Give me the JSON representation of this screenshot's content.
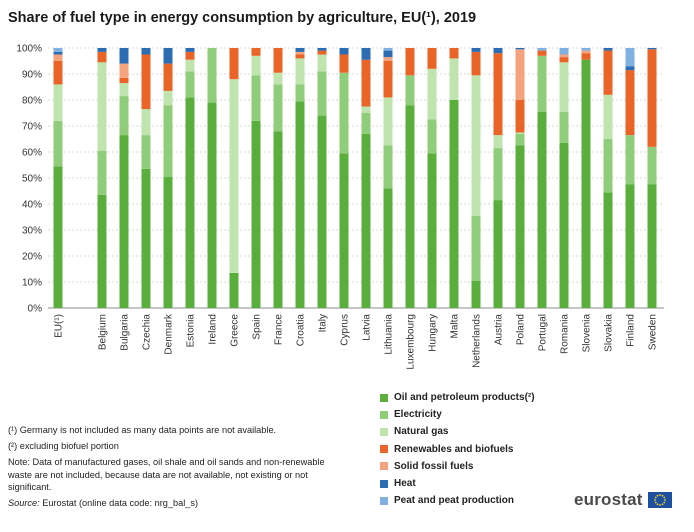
{
  "title": "Share of fuel type in energy consumption by agriculture, EU(¹), 2019",
  "notes": {
    "note1": "(¹) Germany is not included as many data points are not available.",
    "note2": "(²) excluding biofuel portion",
    "note3": "Note: Data of manufactured gases, oil shale and oil sands and non-renewable waste are not included, because data are not available, not existing or not significant.",
    "source_label": "Source:",
    "source_text": " Eurostat (online data code: nrg_bal_s)"
  },
  "logo": {
    "text": "eurostat"
  },
  "colors": {
    "oil": "#5aaf3c",
    "electricity": "#8fcd7a",
    "gas": "#bfe4ae",
    "renewables": "#ea6428",
    "solid": "#f5a27f",
    "heat": "#2b6cb3",
    "peat": "#7fb0e0"
  },
  "chart_data": {
    "type": "bar",
    "stacked": true,
    "title": "Share of fuel type in energy consumption by agriculture, EU(¹), 2019",
    "xlabel": "",
    "ylabel": "",
    "ylim": [
      0,
      100
    ],
    "y_ticks": [
      "0%",
      "10%",
      "20%",
      "30%",
      "40%",
      "50%",
      "60%",
      "70%",
      "80%",
      "90%",
      "100%"
    ],
    "grid": true,
    "legend_position": "bottom-right",
    "categories": [
      "EU(¹)",
      "Belgium",
      "Bulgaria",
      "Czechia",
      "Denmark",
      "Estonia",
      "Ireland",
      "Greece",
      "Spain",
      "France",
      "Croatia",
      "Italy",
      "Cyprus",
      "Latvia",
      "Lithuania",
      "Luxembourg",
      "Hungary",
      "Malta",
      "Netherlands",
      "Austria",
      "Poland",
      "Portugal",
      "Romania",
      "Slovenia",
      "Slovakia",
      "Finland",
      "Sweden"
    ],
    "series": [
      {
        "name": "Oil and petroleum products(²)",
        "color": "#5aaf3c",
        "values": [
          54.5,
          43.5,
          66.5,
          53.5,
          50.5,
          81,
          79,
          13.5,
          72,
          68,
          79.5,
          74,
          59.5,
          67,
          46,
          78,
          59.5,
          80,
          10.5,
          41.5,
          62.5,
          75.5,
          63.5,
          95.5,
          44.5,
          47.5,
          47.5
        ]
      },
      {
        "name": "Electricity",
        "color": "#8fcd7a",
        "values": [
          17.5,
          17,
          15,
          13,
          27.5,
          10,
          21,
          0,
          17.5,
          18,
          6.5,
          17,
          31,
          8,
          16.5,
          11.5,
          13,
          0,
          25,
          20,
          4.5,
          21.5,
          12,
          0,
          20.5,
          19,
          14.5
        ]
      },
      {
        "name": "Natural gas",
        "color": "#bfe4ae",
        "values": [
          14,
          34,
          5,
          10,
          5.5,
          4.5,
          0,
          74.5,
          7.5,
          4.5,
          10,
          6.5,
          0,
          2.5,
          18.5,
          0,
          19.5,
          16,
          54,
          5,
          0.5,
          0,
          19,
          0,
          17,
          0,
          0
        ]
      },
      {
        "name": "Renewables and biofuels",
        "color": "#ea6428",
        "values": [
          9,
          4,
          2,
          21,
          10.5,
          3,
          0,
          12,
          3,
          9.5,
          1.5,
          1.5,
          7,
          18,
          14,
          10.5,
          8,
          4,
          9,
          31.5,
          12.5,
          2,
          2,
          2.5,
          17,
          25,
          37.5
        ]
      },
      {
        "name": "Solid fossil fuels",
        "color": "#f5a27f",
        "values": [
          2.5,
          0,
          5.5,
          0,
          0,
          0,
          0,
          0,
          0,
          0,
          1,
          0,
          0,
          0,
          1.5,
          0,
          0,
          0,
          0,
          0,
          19.5,
          0,
          1,
          1,
          0,
          0,
          0
        ]
      },
      {
        "name": "Heat",
        "color": "#2b6cb3",
        "values": [
          1,
          1.5,
          6,
          2.5,
          6,
          1.5,
          0,
          0,
          0,
          0,
          1.5,
          1,
          2.5,
          4.5,
          2.5,
          0,
          0,
          0,
          1.5,
          2,
          0.5,
          0,
          0,
          0,
          1,
          1.5,
          0.5
        ]
      },
      {
        "name": "Peat and peat production",
        "color": "#7fb0e0",
        "values": [
          1.5,
          0,
          0,
          0,
          0,
          0,
          0,
          0,
          0,
          0,
          0,
          0,
          0,
          0,
          1,
          0,
          0,
          0,
          0,
          0,
          0,
          1,
          2.5,
          1,
          0,
          7,
          0
        ]
      }
    ]
  }
}
